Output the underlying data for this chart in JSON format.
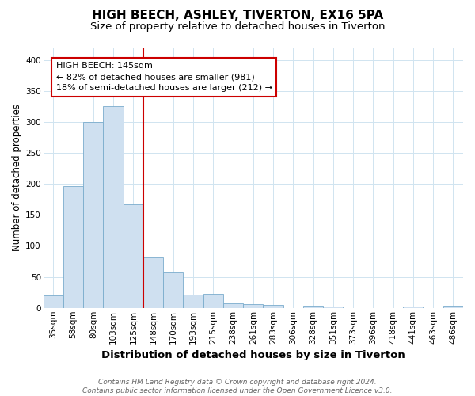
{
  "title": "HIGH BEECH, ASHLEY, TIVERTON, EX16 5PA",
  "subtitle": "Size of property relative to detached houses in Tiverton",
  "xlabel": "Distribution of detached houses by size in Tiverton",
  "ylabel": "Number of detached properties",
  "footnote": "Contains HM Land Registry data © Crown copyright and database right 2024.\nContains public sector information licensed under the Open Government Licence v3.0.",
  "bin_labels": [
    "35sqm",
    "58sqm",
    "80sqm",
    "103sqm",
    "125sqm",
    "148sqm",
    "170sqm",
    "193sqm",
    "215sqm",
    "238sqm",
    "261sqm",
    "283sqm",
    "306sqm",
    "328sqm",
    "351sqm",
    "373sqm",
    "396sqm",
    "418sqm",
    "441sqm",
    "463sqm",
    "486sqm"
  ],
  "bar_heights": [
    20,
    197,
    300,
    325,
    167,
    82,
    57,
    21,
    23,
    7,
    6,
    5,
    0,
    4,
    2,
    0,
    0,
    0,
    2,
    0,
    3
  ],
  "bar_color": "#cfe0f0",
  "bar_edge_color": "#7aaccc",
  "grid_color": "#d0e4f0",
  "annotation_text": "HIGH BEECH: 145sqm\n← 82% of detached houses are smaller (981)\n18% of semi-detached houses are larger (212) →",
  "annotation_box_color": "#ffffff",
  "annotation_box_edge_color": "#cc0000",
  "vline_color": "#cc0000",
  "vline_x_index": 5,
  "ylim": [
    0,
    420
  ],
  "yticks": [
    0,
    50,
    100,
    150,
    200,
    250,
    300,
    350,
    400
  ],
  "plot_bg_color": "#ffffff",
  "fig_bg_color": "#ffffff",
  "title_fontsize": 11,
  "subtitle_fontsize": 9.5,
  "xlabel_fontsize": 9.5,
  "ylabel_fontsize": 8.5,
  "tick_fontsize": 7.5,
  "footnote_fontsize": 6.5
}
